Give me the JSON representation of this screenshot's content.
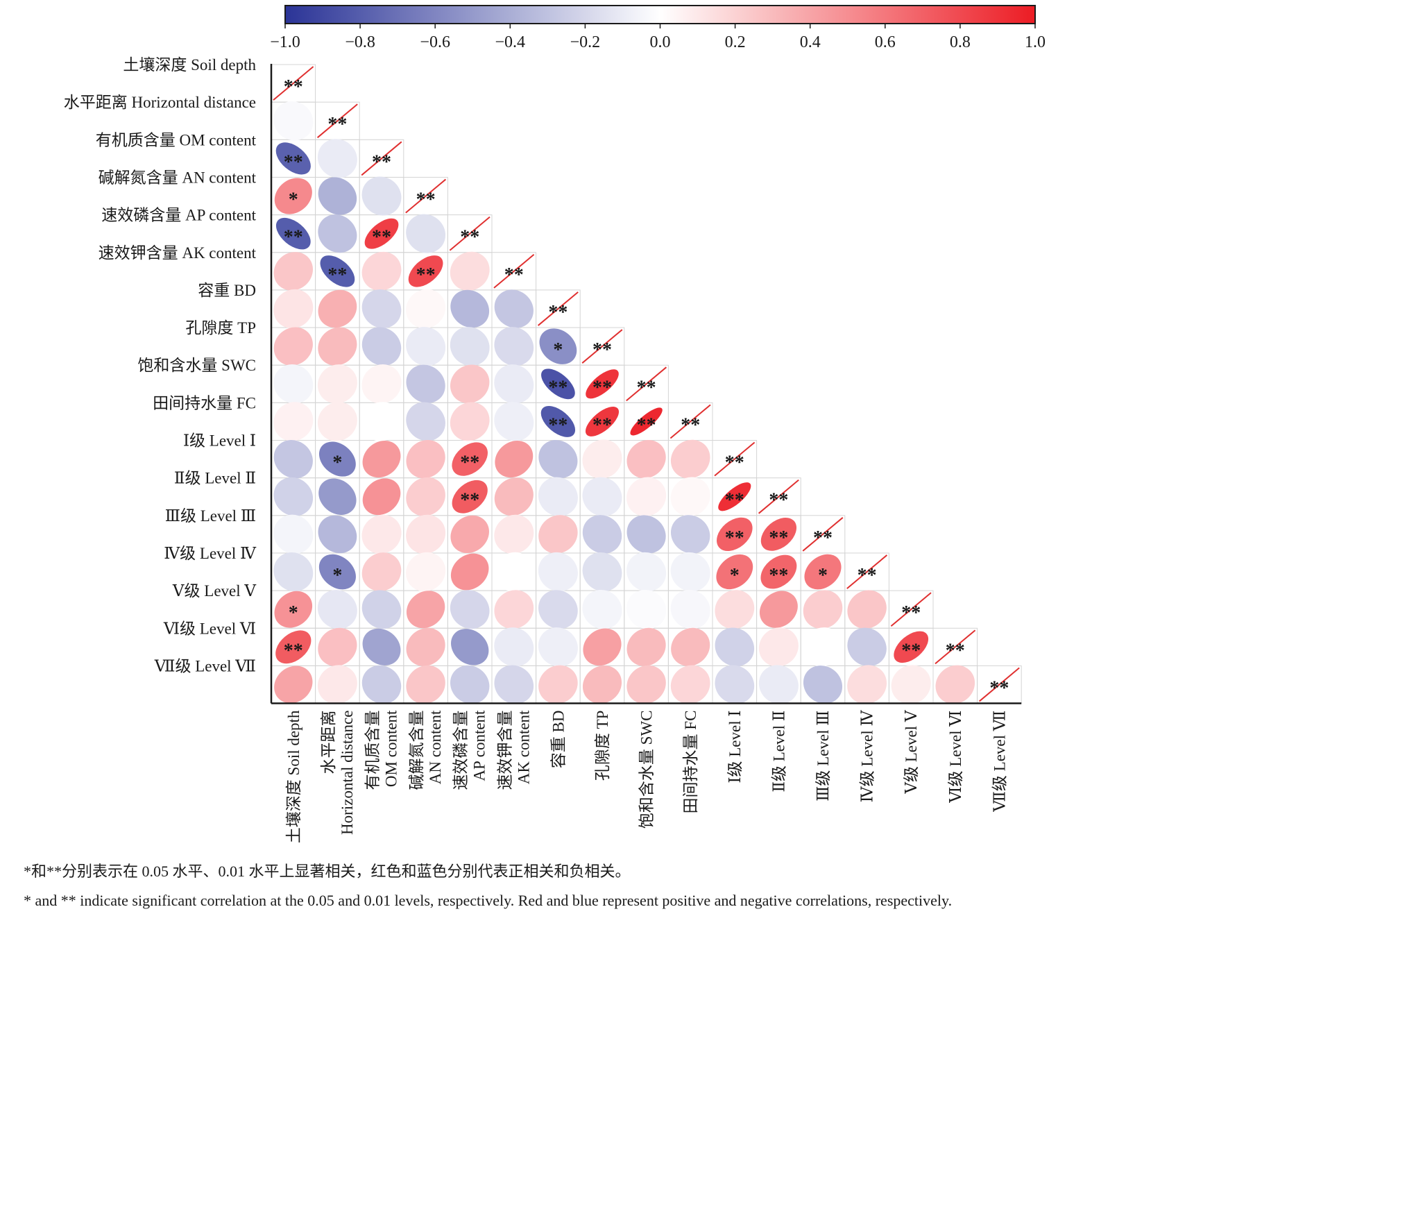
{
  "chart_data": {
    "type": "heatmap",
    "style": "lower-triangle ellipse correlation matrix",
    "variables": [
      "土壤深度 Soil depth",
      "水平距离 Horizontal distance",
      "有机质含量 OM content",
      "碱解氮含量 AN content",
      "速效磷含量 AP content",
      "速效钾含量 AK content",
      "容重 BD",
      "孔隙度 TP",
      "饱和含水量 SWC",
      "田间持水量 FC",
      "Ⅰ级 Level Ⅰ",
      "Ⅱ级 Level Ⅱ",
      "Ⅲ级 Level Ⅲ",
      "Ⅳ级 Level Ⅳ",
      "Ⅴ级 Level Ⅴ",
      "Ⅵ级 Level Ⅵ",
      "Ⅶ级 Level Ⅶ"
    ],
    "x_labels": [
      [
        "土壤深度 Soil depth"
      ],
      [
        "水平距离",
        "Horizontal distance"
      ],
      [
        "有机质含量",
        "OM content"
      ],
      [
        "碱解氮含量",
        "AN content"
      ],
      [
        "速效磷含量",
        "AP content"
      ],
      [
        "速效钾含量",
        "AK content"
      ],
      [
        "容重 BD"
      ],
      [
        "孔隙度 TP"
      ],
      [
        "饱和含水量 SWC"
      ],
      [
        "田间持水量 FC"
      ],
      [
        "Ⅰ级 Level Ⅰ"
      ],
      [
        "Ⅱ级 Level Ⅱ"
      ],
      [
        "Ⅲ级 Level Ⅲ"
      ],
      [
        "Ⅳ级 Level Ⅳ"
      ],
      [
        "Ⅴ级 Level Ⅴ"
      ],
      [
        "Ⅵ级 Level Ⅵ"
      ],
      [
        "Ⅶ级 Level Ⅶ"
      ]
    ],
    "values": [
      [
        1.0
      ],
      [
        -0.03,
        1.0
      ],
      [
        -0.78,
        -0.1,
        1.0
      ],
      [
        0.52,
        -0.38,
        -0.15,
        1.0
      ],
      [
        -0.8,
        -0.3,
        0.85,
        -0.15,
        1.0
      ],
      [
        0.25,
        -0.8,
        0.18,
        0.8,
        0.15,
        1.0
      ],
      [
        0.12,
        0.35,
        -0.2,
        0.03,
        -0.35,
        -0.28,
        1.0
      ],
      [
        0.28,
        0.3,
        -0.25,
        -0.1,
        -0.15,
        -0.18,
        -0.55,
        1.0
      ],
      [
        -0.05,
        0.08,
        0.05,
        -0.28,
        0.25,
        -0.1,
        -0.85,
        0.9,
        1.0
      ],
      [
        0.06,
        0.08,
        0.0,
        -0.2,
        0.18,
        -0.08,
        -0.82,
        0.88,
        0.95,
        1.0
      ],
      [
        -0.28,
        -0.62,
        0.45,
        0.28,
        0.7,
        0.45,
        -0.3,
        0.08,
        0.28,
        0.22,
        1.0
      ],
      [
        -0.22,
        -0.5,
        0.48,
        0.22,
        0.72,
        0.3,
        -0.1,
        -0.1,
        0.06,
        0.03,
        0.92,
        1.0
      ],
      [
        -0.05,
        -0.35,
        0.1,
        0.12,
        0.38,
        0.1,
        0.25,
        -0.25,
        -0.3,
        -0.25,
        0.7,
        0.72,
        1.0
      ],
      [
        -0.15,
        -0.6,
        0.22,
        0.05,
        0.48,
        0.0,
        -0.08,
        -0.15,
        -0.06,
        -0.06,
        0.62,
        0.68,
        0.6,
        1.0
      ],
      [
        0.48,
        -0.12,
        -0.22,
        0.4,
        -0.2,
        0.18,
        -0.18,
        -0.05,
        -0.02,
        -0.04,
        0.15,
        0.45,
        0.22,
        0.25,
        1.0
      ],
      [
        0.72,
        0.28,
        -0.45,
        0.3,
        -0.5,
        -0.1,
        -0.08,
        0.42,
        0.3,
        0.3,
        -0.22,
        0.1,
        0.0,
        -0.25,
        0.8,
        1.0
      ],
      [
        0.4,
        0.1,
        -0.25,
        0.25,
        -0.25,
        -0.2,
        0.22,
        0.3,
        0.25,
        0.18,
        -0.18,
        -0.1,
        -0.3,
        0.15,
        0.08,
        0.22,
        1.0
      ]
    ],
    "significance": [
      [
        "**"
      ],
      [
        "",
        "**"
      ],
      [
        "**",
        "",
        "**"
      ],
      [
        "*",
        "",
        "",
        "**"
      ],
      [
        "**",
        "",
        "**",
        "",
        "**"
      ],
      [
        "",
        "**",
        "",
        "**",
        "",
        "**"
      ],
      [
        "",
        "",
        "",
        "",
        "",
        "",
        "**"
      ],
      [
        "",
        "",
        "",
        "",
        "",
        "",
        "*",
        "**"
      ],
      [
        "",
        "",
        "",
        "",
        "",
        "",
        "**",
        "**",
        "**"
      ],
      [
        "",
        "",
        "",
        "",
        "",
        "",
        "**",
        "**",
        "**",
        "**"
      ],
      [
        "",
        "*",
        "",
        "",
        "**",
        "",
        "",
        "",
        "",
        "",
        "**"
      ],
      [
        "",
        "",
        "",
        "",
        "**",
        "",
        "",
        "",
        "",
        "",
        "**",
        "**"
      ],
      [
        "",
        "",
        "",
        "",
        "",
        "",
        "",
        "",
        "",
        "",
        "**",
        "**",
        "**"
      ],
      [
        "",
        "*",
        "",
        "",
        "",
        "",
        "",
        "",
        "",
        "",
        "*",
        "**",
        "*",
        "**"
      ],
      [
        "*",
        "",
        "",
        "",
        "",
        "",
        "",
        "",
        "",
        "",
        "",
        "",
        "",
        "",
        "**"
      ],
      [
        "**",
        "",
        "",
        "",
        "",
        "",
        "",
        "",
        "",
        "",
        "",
        "",
        "",
        "",
        "**",
        "**"
      ],
      [
        "",
        "",
        "",
        "",
        "",
        "",
        "",
        "",
        "",
        "",
        "",
        "",
        "",
        "",
        "",
        "",
        "**"
      ]
    ],
    "colorbar": {
      "ticks": [
        "−1.0",
        "−0.8",
        "−0.6",
        "−0.4",
        "−0.2",
        "0.0",
        "0.2",
        "0.4",
        "0.6",
        "0.8",
        "1.0"
      ],
      "range": [
        -1.0,
        1.0
      ],
      "negative_color": "#2b3497",
      "zero_color": "#ffffff",
      "positive_color": "#ec1c24",
      "placement": "top"
    },
    "diagonal_line_color": "#e03030",
    "grid_color": "#d4d4d4"
  },
  "notes": {
    "cn": "*和**分别表示在 0.05 水平、0.01 水平上显著相关，红色和蓝色分别代表正相关和负相关。",
    "en": "* and ** indicate significant correlation at the 0.05 and 0.01 levels, respectively. Red and blue represent positive and negative correlations, respectively."
  }
}
